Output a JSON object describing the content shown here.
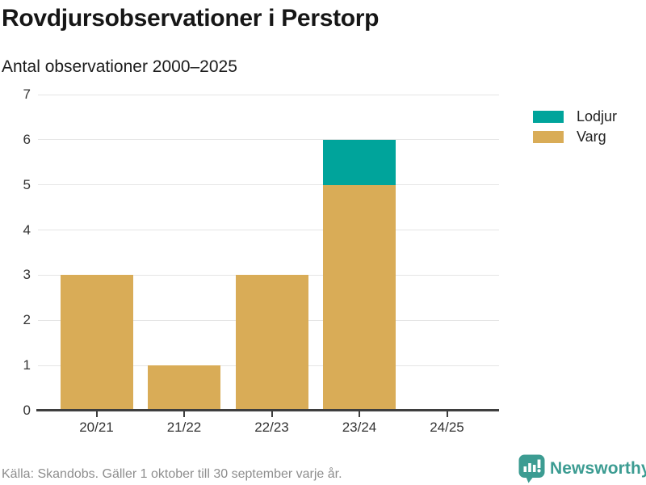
{
  "title": "Rovdjursobservationer i Perstorp",
  "subtitle": "Antal observationer 2000–2025",
  "source": "Källa: Skandobs. Gäller 1 oktober till 30 september varje år.",
  "brand": {
    "name": "Newsworthy",
    "color": "#3c9c92",
    "icon": "bar-chart-speech-bubble-icon"
  },
  "colors": {
    "lodjur": "#00a49b",
    "varg": "#d9ac57",
    "gridline": "#e5e5e5",
    "axis": "#3e3e3e",
    "tick_text": "#333333",
    "title_text": "#161616",
    "muted_text": "#8e8e8e"
  },
  "chart_data": {
    "type": "bar",
    "stacked": true,
    "title": "Rovdjursobservationer i Perstorp",
    "subtitle": "Antal observationer 2000–2025",
    "xlabel": "",
    "ylabel": "",
    "categories": [
      "20/21",
      "21/22",
      "22/23",
      "23/24",
      "24/25"
    ],
    "series": [
      {
        "name": "Varg",
        "color": "#d9ac57",
        "values": [
          3,
          1,
          3,
          5,
          0
        ]
      },
      {
        "name": "Lodjur",
        "color": "#00a49b",
        "values": [
          0,
          0,
          0,
          1,
          0
        ]
      }
    ],
    "totals": [
      3,
      1,
      3,
      6,
      0
    ],
    "ylim": [
      0,
      7
    ],
    "yticks": [
      0,
      1,
      2,
      3,
      4,
      5,
      6,
      7
    ],
    "grid": true,
    "legend_position": "top-right",
    "legend": [
      {
        "label": "Lodjur",
        "color": "#00a49b"
      },
      {
        "label": "Varg",
        "color": "#d9ac57"
      }
    ]
  }
}
